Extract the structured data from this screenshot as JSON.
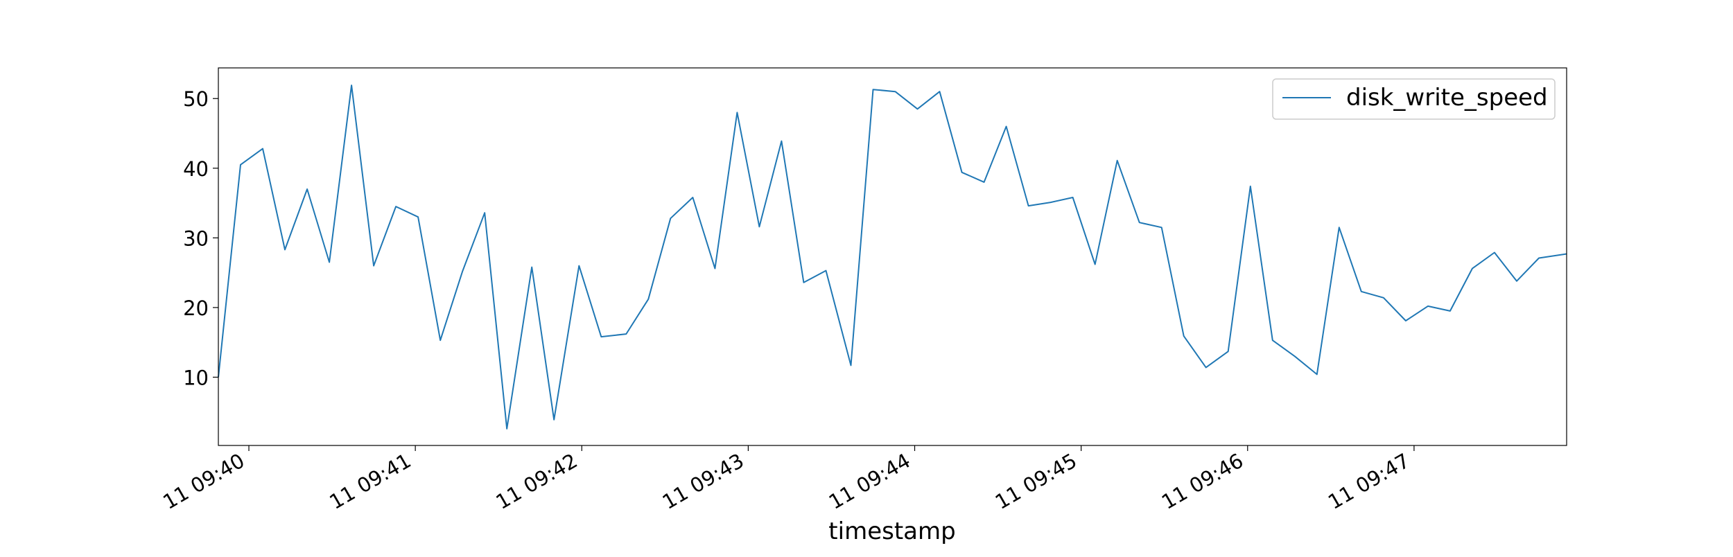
{
  "chart_data": {
    "type": "line",
    "title": "",
    "xlabel": "timestamp",
    "ylabel": "",
    "x_start": "11 09:39:49",
    "x_end": "11 09:47:55",
    "x_ticks": [
      "11 09:40",
      "11 09:41",
      "11 09:42",
      "11 09:43",
      "11 09:44",
      "11 09:45",
      "11 09:46",
      "11 09:47"
    ],
    "y_ticks": [
      10,
      20,
      30,
      40,
      50
    ],
    "ylim": [
      0.2,
      54.4
    ],
    "grid": false,
    "legend_position": "top-right",
    "series": [
      {
        "name": "disk_write_speed",
        "color": "#1f77b4",
        "x": [
          "11 09:39:49",
          "11 09:39:57",
          "11 09:40:05",
          "11 09:40:13",
          "11 09:40:21",
          "11 09:40:29",
          "11 09:40:37",
          "11 09:40:45",
          "11 09:40:53",
          "11 09:41:01",
          "11 09:41:09",
          "11 09:41:17",
          "11 09:41:25",
          "11 09:41:33",
          "11 09:41:42",
          "11 09:41:50",
          "11 09:41:59",
          "11 09:42:07",
          "11 09:42:16",
          "11 09:42:24",
          "11 09:42:32",
          "11 09:42:40",
          "11 09:42:48",
          "11 09:42:56",
          "11 09:43:04",
          "11 09:43:12",
          "11 09:43:20",
          "11 09:43:28",
          "11 09:43:37",
          "11 09:43:45",
          "11 09:43:53",
          "11 09:44:01",
          "11 09:44:09",
          "11 09:44:17",
          "11 09:44:25",
          "11 09:44:33",
          "11 09:44:41",
          "11 09:44:49",
          "11 09:44:57",
          "11 09:45:05",
          "11 09:45:13",
          "11 09:45:21",
          "11 09:45:29",
          "11 09:45:37",
          "11 09:45:45",
          "11 09:45:53",
          "11 09:46:01",
          "11 09:46:09",
          "11 09:46:17",
          "11 09:46:25",
          "11 09:46:33",
          "11 09:46:41",
          "11 09:46:49",
          "11 09:46:57",
          "11 09:47:05",
          "11 09:47:13",
          "11 09:47:21",
          "11 09:47:29",
          "11 09:47:37",
          "11 09:47:45",
          "11 09:47:55"
        ],
        "values": [
          10.0,
          40.5,
          42.8,
          28.3,
          37.0,
          26.5,
          51.9,
          26.0,
          34.5,
          33.0,
          15.3,
          25.2,
          33.6,
          2.6,
          25.8,
          3.9,
          26.0,
          15.8,
          16.2,
          21.2,
          32.8,
          35.8,
          25.6,
          48.0,
          31.6,
          43.9,
          23.6,
          25.3,
          11.7,
          51.3,
          51.0,
          48.5,
          51.0,
          39.4,
          38.0,
          46.0,
          34.6,
          35.1,
          35.8,
          26.2,
          41.1,
          32.2,
          31.5,
          15.9,
          11.4,
          13.7,
          37.4,
          15.3,
          13.0,
          10.4,
          31.5,
          22.3,
          21.4,
          18.1,
          20.2,
          19.5,
          25.6,
          27.9,
          23.8,
          27.1,
          27.7
        ]
      }
    ]
  }
}
